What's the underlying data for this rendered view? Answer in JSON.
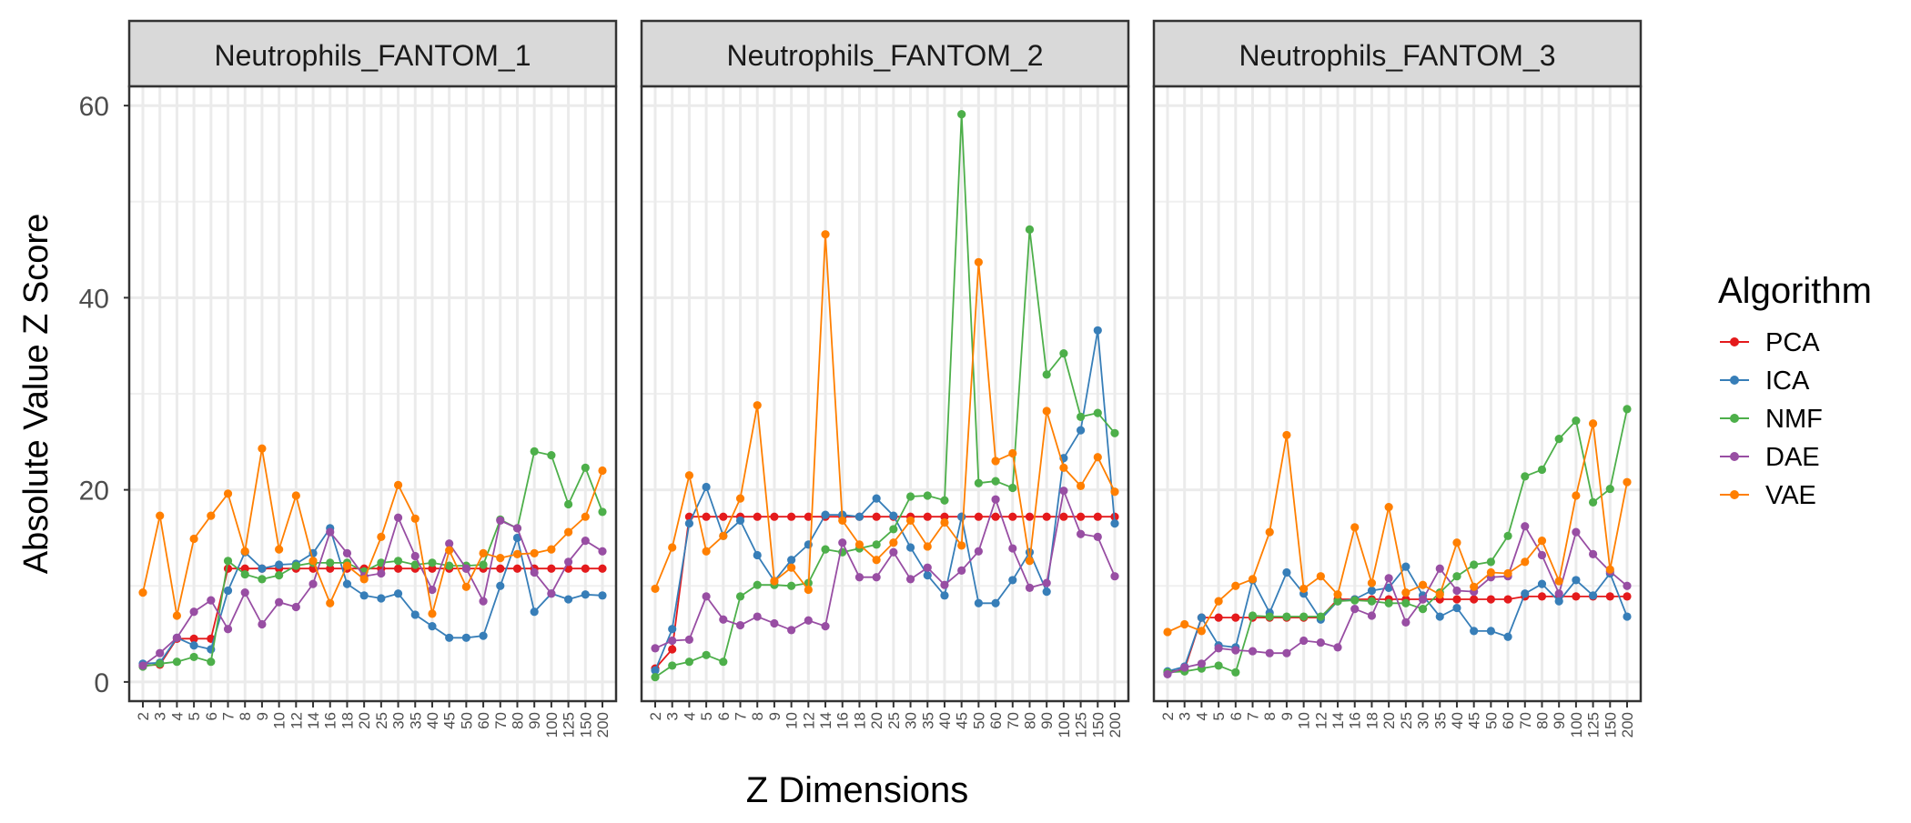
{
  "chart_data": {
    "type": "line",
    "ylabel": "Absolute Value Z Score",
    "xlabel": "Z Dimensions",
    "ylim": [
      -2,
      62
    ],
    "yticks": [
      0,
      20,
      40,
      60
    ],
    "grid": true,
    "legend_placement": "right",
    "legend": {
      "title": "Algorithm"
    },
    "categories": [
      "2",
      "3",
      "4",
      "5",
      "6",
      "7",
      "8",
      "9",
      "10",
      "12",
      "14",
      "16",
      "18",
      "20",
      "25",
      "30",
      "35",
      "40",
      "45",
      "50",
      "60",
      "70",
      "80",
      "90",
      "100",
      "125",
      "150",
      "200"
    ],
    "series_styles": [
      {
        "name": "PCA",
        "color": "#E41A1C"
      },
      {
        "name": "ICA",
        "color": "#377EB8"
      },
      {
        "name": "NMF",
        "color": "#4DAF4A"
      },
      {
        "name": "DAE",
        "color": "#984EA3"
      },
      {
        "name": "VAE",
        "color": "#FF7F00"
      }
    ],
    "panels": [
      {
        "title": "Neutrophils_FANTOM_1",
        "series": [
          {
            "name": "PCA",
            "values": [
              1.7,
              1.8,
              4.5,
              4.5,
              4.5,
              11.8,
              11.8,
              11.8,
              11.8,
              11.8,
              11.8,
              11.8,
              11.8,
              11.8,
              11.8,
              11.8,
              11.8,
              11.8,
              11.8,
              11.8,
              11.8,
              11.8,
              11.8,
              11.8,
              11.8,
              11.8,
              11.8,
              11.8
            ]
          },
          {
            "name": "ICA",
            "values": [
              1.9,
              2.0,
              4.6,
              3.8,
              3.4,
              9.5,
              13.5,
              11.8,
              12.2,
              12.3,
              13.4,
              16.0,
              10.2,
              9.0,
              8.7,
              9.2,
              7.0,
              5.8,
              4.6,
              4.6,
              4.8,
              10.0,
              15.0,
              7.3,
              9.2,
              8.6,
              9.1,
              9.0
            ]
          },
          {
            "name": "NMF",
            "values": [
              1.6,
              1.9,
              2.1,
              2.6,
              2.1,
              12.6,
              11.2,
              10.7,
              11.1,
              12.1,
              12.4,
              12.4,
              12.4,
              11.5,
              12.4,
              12.6,
              12.2,
              12.4,
              12.1,
              12.1,
              12.2,
              16.9,
              16.0,
              24.0,
              23.6,
              18.5,
              22.3,
              17.7
            ]
          },
          {
            "name": "DAE",
            "values": [
              1.7,
              3.0,
              4.6,
              7.3,
              8.5,
              5.5,
              9.3,
              6.0,
              8.3,
              7.8,
              10.2,
              15.6,
              13.4,
              11.0,
              11.3,
              17.1,
              13.1,
              9.6,
              14.4,
              11.8,
              8.4,
              16.8,
              16.0,
              11.4,
              9.2,
              12.5,
              14.7,
              13.6
            ]
          },
          {
            "name": "VAE",
            "values": [
              9.3,
              17.3,
              6.9,
              14.9,
              17.3,
              19.6,
              13.6,
              24.3,
              13.8,
              19.4,
              12.6,
              8.2,
              12.1,
              10.7,
              15.1,
              20.5,
              17.0,
              7.1,
              13.7,
              9.9,
              13.4,
              12.9,
              13.3,
              13.4,
              13.8,
              15.6,
              17.2,
              22.0
            ]
          }
        ]
      },
      {
        "title": "Neutrophils_FANTOM_2",
        "series": [
          {
            "name": "PCA",
            "values": [
              1.4,
              3.4,
              17.2,
              17.2,
              17.2,
              17.2,
              17.2,
              17.2,
              17.2,
              17.2,
              17.2,
              17.2,
              17.2,
              17.2,
              17.2,
              17.2,
              17.2,
              17.2,
              17.2,
              17.2,
              17.2,
              17.2,
              17.2,
              17.2,
              17.2,
              17.2,
              17.2,
              17.2
            ]
          },
          {
            "name": "ICA",
            "values": [
              1.2,
              5.5,
              16.5,
              20.3,
              15.2,
              16.8,
              13.2,
              10.5,
              12.7,
              14.3,
              17.4,
              17.4,
              17.2,
              19.1,
              17.3,
              14.0,
              11.1,
              9.0,
              17.2,
              8.2,
              8.2,
              10.6,
              13.5,
              9.4,
              23.3,
              26.2,
              36.6,
              16.5
            ]
          },
          {
            "name": "NMF",
            "values": [
              0.5,
              1.7,
              2.1,
              2.8,
              2.1,
              8.9,
              10.1,
              10.1,
              10.0,
              10.3,
              13.8,
              13.5,
              13.9,
              14.3,
              15.9,
              19.3,
              19.4,
              18.9,
              59.1,
              20.7,
              20.9,
              20.2,
              47.1,
              32.0,
              34.2,
              27.6,
              28.0,
              25.9
            ]
          },
          {
            "name": "DAE",
            "values": [
              3.5,
              4.3,
              4.4,
              8.9,
              6.5,
              5.9,
              6.8,
              6.1,
              5.4,
              6.4,
              5.8,
              14.5,
              10.9,
              10.9,
              13.5,
              10.7,
              11.9,
              10.1,
              11.6,
              13.6,
              19.0,
              13.9,
              9.8,
              10.3,
              19.9,
              15.4,
              15.1,
              11.0
            ]
          },
          {
            "name": "VAE",
            "values": [
              9.7,
              14.0,
              21.5,
              13.6,
              15.2,
              19.1,
              28.8,
              10.5,
              11.9,
              9.6,
              46.6,
              16.8,
              14.3,
              12.7,
              14.5,
              16.8,
              14.1,
              16.6,
              14.2,
              43.7,
              23.0,
              23.8,
              12.6,
              28.2,
              22.3,
              20.4,
              23.4,
              19.8
            ]
          }
        ]
      },
      {
        "title": "Neutrophils_FANTOM_3",
        "series": [
          {
            "name": "PCA",
            "values": [
              1.0,
              1.3,
              6.7,
              6.7,
              6.7,
              6.7,
              6.7,
              6.7,
              6.7,
              6.7,
              8.6,
              8.6,
              8.6,
              8.6,
              8.6,
              8.6,
              8.6,
              8.6,
              8.6,
              8.6,
              8.6,
              8.9,
              8.9,
              8.9,
              8.9,
              8.9,
              8.9,
              8.9
            ]
          },
          {
            "name": "ICA",
            "values": [
              1.1,
              1.6,
              6.7,
              3.8,
              3.6,
              10.6,
              7.2,
              11.4,
              9.2,
              6.5,
              8.4,
              8.6,
              9.5,
              9.8,
              12.0,
              9.0,
              6.8,
              7.7,
              5.3,
              5.3,
              4.7,
              9.2,
              10.2,
              8.4,
              10.6,
              9.0,
              11.3,
              6.8
            ]
          },
          {
            "name": "NMF",
            "values": [
              1.0,
              1.1,
              1.4,
              1.7,
              1.0,
              6.9,
              6.8,
              6.8,
              6.8,
              6.8,
              8.4,
              8.5,
              8.4,
              8.2,
              8.2,
              7.6,
              9.3,
              11.0,
              12.2,
              12.5,
              15.2,
              21.4,
              22.1,
              25.3,
              27.2,
              18.7,
              20.1,
              28.4
            ]
          },
          {
            "name": "DAE",
            "values": [
              0.8,
              1.5,
              1.9,
              3.5,
              3.3,
              3.2,
              3.0,
              3.0,
              4.3,
              4.1,
              3.6,
              7.6,
              6.9,
              10.8,
              6.2,
              8.6,
              11.8,
              9.5,
              9.4,
              10.9,
              11.0,
              16.2,
              13.2,
              9.2,
              15.6,
              13.3,
              11.5,
              10.0
            ]
          },
          {
            "name": "VAE",
            "values": [
              5.2,
              6.0,
              5.3,
              8.4,
              10.0,
              10.7,
              15.6,
              25.7,
              9.7,
              11.0,
              9.1,
              16.1,
              10.3,
              18.2,
              9.3,
              10.1,
              9.1,
              14.5,
              9.9,
              11.4,
              11.3,
              12.5,
              14.7,
              10.5,
              19.4,
              26.9,
              11.7,
              20.8
            ]
          }
        ]
      }
    ]
  }
}
